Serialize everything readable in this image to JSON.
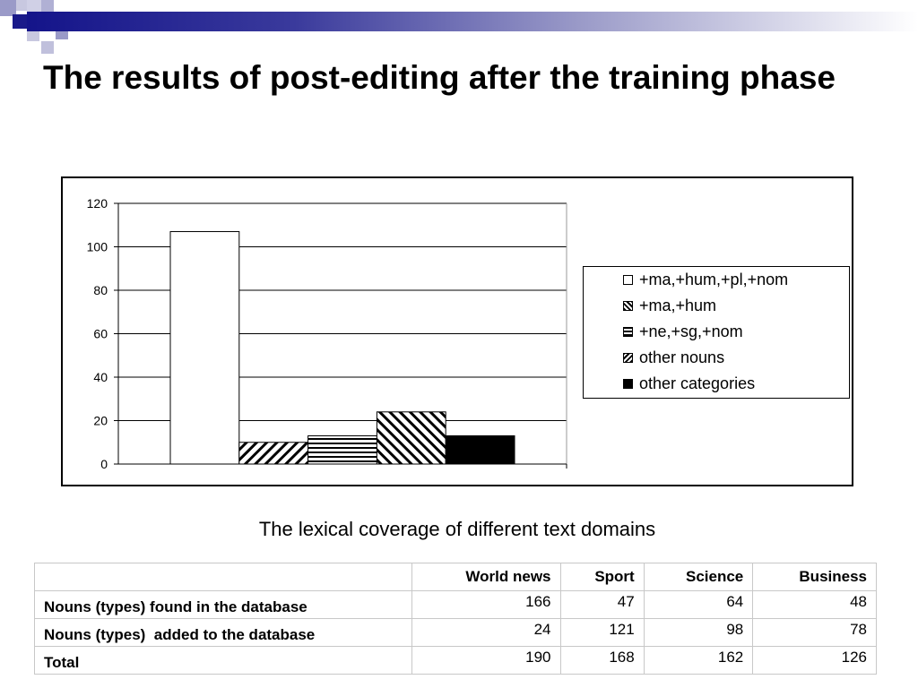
{
  "slide": {
    "title": "The results of post-editing after the training phase",
    "caption": "The lexical coverage of different text domains"
  },
  "chart_data": {
    "type": "bar",
    "title": "",
    "xlabel": "",
    "ylabel": "",
    "ylim": [
      0,
      120
    ],
    "yticks": [
      0,
      20,
      40,
      60,
      80,
      100,
      120
    ],
    "categories": [
      ""
    ],
    "grid": true,
    "legend_position": "right",
    "series": [
      {
        "name": "+ma,+hum,+pl,+nom",
        "values": [
          107
        ],
        "fill": "#ffffff",
        "pattern": "none"
      },
      {
        "name": "+ma,+hum",
        "values": [
          10
        ],
        "fill": "#ffffff",
        "pattern": "diag-down"
      },
      {
        "name": "+ne,+sg,+nom",
        "values": [
          13
        ],
        "fill": "#ffffff",
        "pattern": "horizontal"
      },
      {
        "name": "other nouns",
        "values": [
          24
        ],
        "fill": "#ffffff",
        "pattern": "diag-up"
      },
      {
        "name": "other categories",
        "values": [
          13
        ],
        "fill": "#000000",
        "pattern": "solid"
      }
    ]
  },
  "table": {
    "headers": [
      "",
      "World news",
      "Sport",
      "Science",
      "Business"
    ],
    "rows": [
      {
        "label": "Nouns (types) found in the database",
        "values": [
          "166",
          "47",
          "64",
          "48"
        ]
      },
      {
        "label": "Nouns (types)  added to the database",
        "values": [
          "24",
          "121",
          "98",
          "78"
        ]
      },
      {
        "label": "Total",
        "values": [
          "190",
          "168",
          "162",
          "126"
        ]
      }
    ]
  },
  "colors": {
    "band_dark": "#14148a",
    "band_light": "#9a9ac8"
  }
}
